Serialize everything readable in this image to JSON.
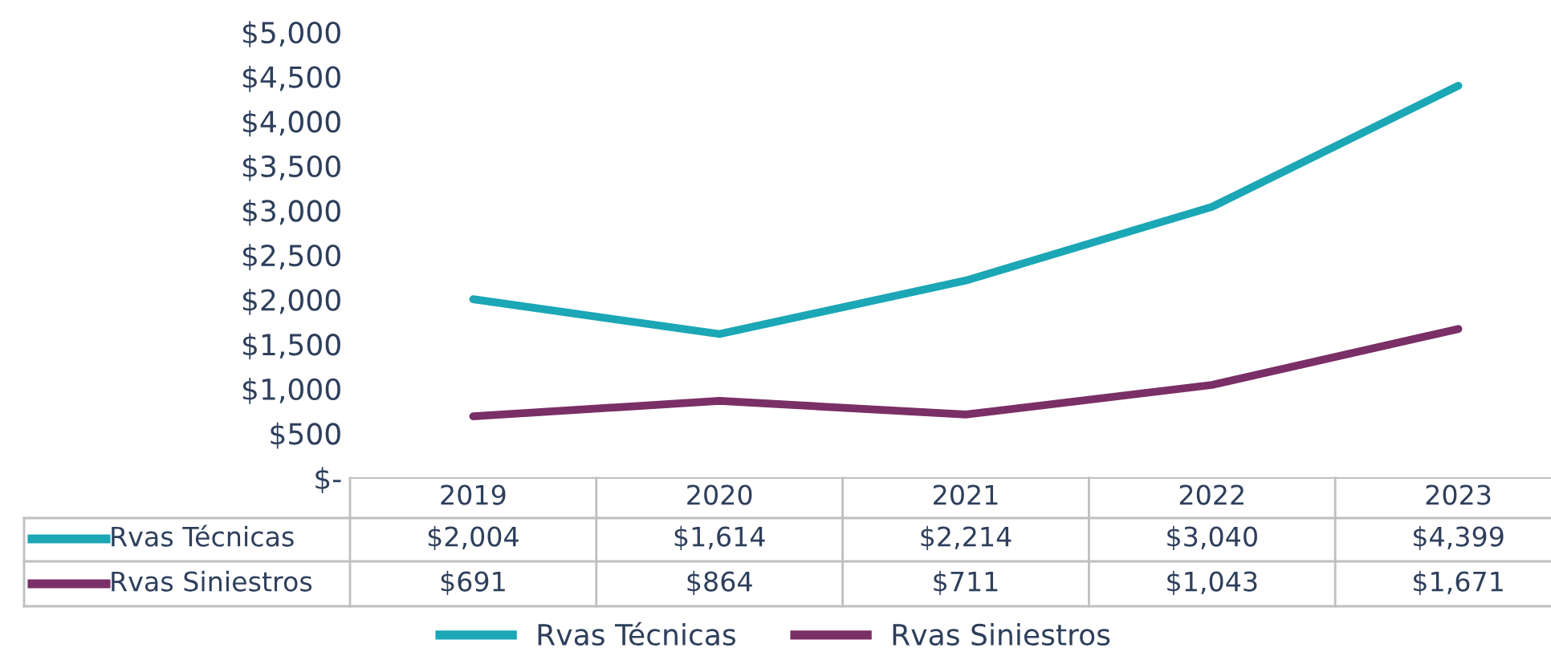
{
  "chart_data": {
    "type": "line",
    "categories": [
      "2019",
      "2020",
      "2021",
      "2022",
      "2023"
    ],
    "series": [
      {
        "name": "Rvas Técnicas",
        "color": "#1ba7b5",
        "values": [
          2004,
          1614,
          2214,
          3040,
          4399
        ],
        "value_labels": [
          "$2,004",
          "$1,614",
          "$2,214",
          "$3,040",
          "$4,399"
        ]
      },
      {
        "name": "Rvas Siniestros",
        "color": "#7a2f67",
        "values": [
          691,
          864,
          711,
          1043,
          1671
        ],
        "value_labels": [
          "$691",
          "$864",
          "$711",
          "$1,043",
          "$1,671"
        ]
      }
    ],
    "ylim": [
      0,
      5000
    ],
    "yticks": [
      {
        "value": 0,
        "label": "$-"
      },
      {
        "value": 500,
        "label": "$500"
      },
      {
        "value": 1000,
        "label": "$1,000"
      },
      {
        "value": 1500,
        "label": "$1,500"
      },
      {
        "value": 2000,
        "label": "$2,000"
      },
      {
        "value": 2500,
        "label": "$2,500"
      },
      {
        "value": 3000,
        "label": "$3,000"
      },
      {
        "value": 3500,
        "label": "$3,500"
      },
      {
        "value": 4000,
        "label": "$4,000"
      },
      {
        "value": 4500,
        "label": "$4,500"
      },
      {
        "value": 5000,
        "label": "$5,000"
      }
    ],
    "grid": false,
    "legend": "bottom",
    "marker": "none",
    "line_style": "solid"
  }
}
